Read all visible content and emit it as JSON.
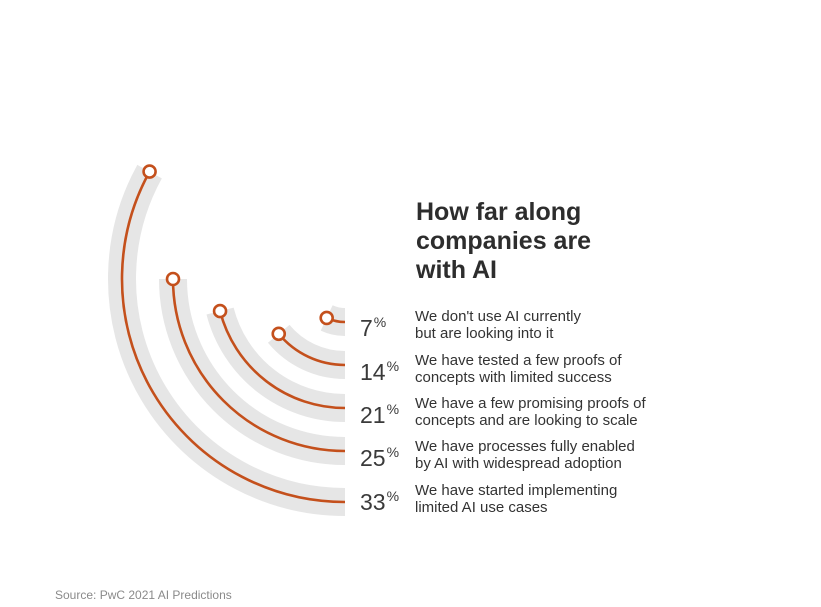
{
  "chart_data": {
    "type": "radial-bar",
    "title_lines": [
      "How far along",
      "companies are",
      "with AI"
    ],
    "series": [
      {
        "value": 7,
        "unit": "%",
        "label_lines": [
          "We don't use AI currently",
          "but are looking into it"
        ]
      },
      {
        "value": 14,
        "unit": "%",
        "label_lines": [
          "We have tested a few proofs of",
          "concepts with limited success"
        ]
      },
      {
        "value": 21,
        "unit": "%",
        "label_lines": [
          "We have a few promising proofs of",
          "concepts and are looking to scale"
        ]
      },
      {
        "value": 25,
        "unit": "%",
        "label_lines": [
          "We have processes fully enabled",
          "by AI with widespread adoption"
        ]
      },
      {
        "value": 33,
        "unit": "%",
        "label_lines": [
          "We have started implementing",
          "limited AI use cases"
        ]
      }
    ],
    "source": "Source: PwC 2021 AI Predictions"
  },
  "colors": {
    "arc_line": "#c4501c",
    "track": "#e6e6e6",
    "dot_fill": "#ffffff",
    "title": "#2d2d2d",
    "source": "#8a8a8a"
  }
}
